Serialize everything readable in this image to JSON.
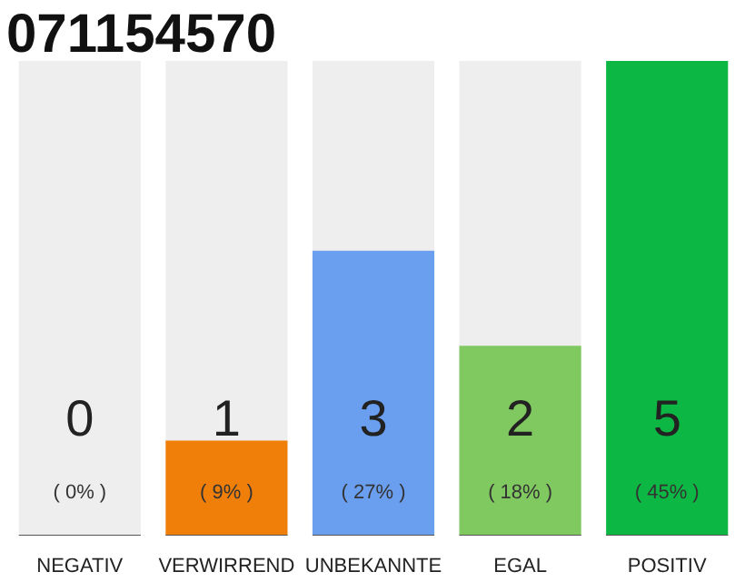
{
  "chart_data": {
    "type": "bar",
    "title": "071154570",
    "categories": [
      "NEGATIV",
      "VERWIRREND",
      "UNBEKANNTE",
      "EGAL",
      "POSITIV"
    ],
    "values": [
      0,
      1,
      3,
      2,
      5
    ],
    "colors": [
      "#888888",
      "#f07f0a",
      "#6a9ff0",
      "#80c860",
      "#0cb843"
    ],
    "data_labels": true,
    "bands": [
      {
        "axis": "y",
        "from": 0,
        "to": 5,
        "color": "#eeeeee"
      }
    ],
    "annotations": [
      "( 0% )",
      "( 9% )",
      "( 27% )",
      "( 18% )",
      "( 45% )"
    ]
  }
}
